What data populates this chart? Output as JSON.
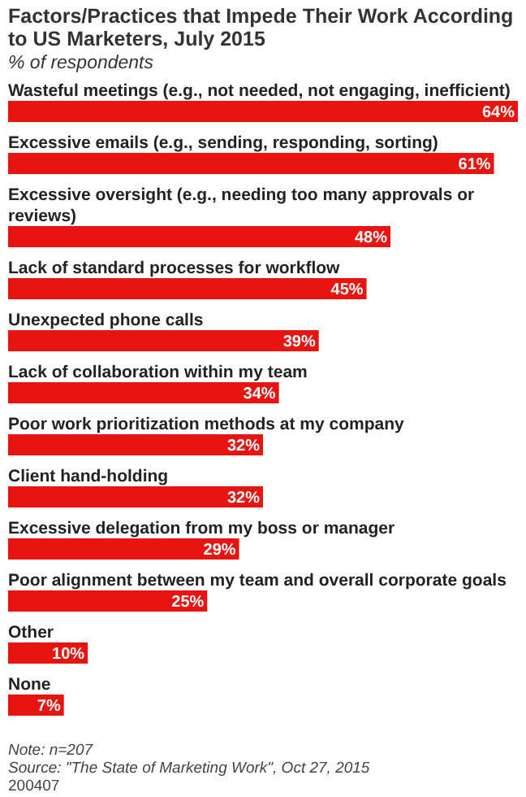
{
  "chart_data": {
    "type": "bar",
    "orientation": "horizontal",
    "title": "Factors/Practices that Impede Their Work According to US Marketers, July 2015",
    "subtitle": "% of respondents",
    "categories": [
      "Wasteful meetings (e.g., not needed, not engaging, inefficient)",
      "Excessive emails (e.g., sending, responding, sorting)",
      "Excessive oversight (e.g., needing too many approvals or reviews)",
      "Lack of standard processes for workflow",
      "Unexpected phone calls",
      "Lack of collaboration within my team",
      "Poor work prioritization methods at my company",
      "Client hand-holding",
      "Excessive delegation from my boss or manager",
      "Poor alignment between my team and overall corporate goals",
      "Other",
      "None"
    ],
    "values": [
      64,
      61,
      48,
      45,
      39,
      34,
      32,
      32,
      29,
      25,
      10,
      7
    ],
    "color": "#e8140f",
    "value_labels": [
      "64%",
      "61%",
      "48%",
      "45%",
      "39%",
      "34%",
      "32%",
      "32%",
      "29%",
      "25%",
      "10%",
      "7%"
    ],
    "annotations": [
      "Note: n=207",
      "Source: \"The State of Marketing Work\", Oct 27, 2015",
      "200407"
    ]
  }
}
